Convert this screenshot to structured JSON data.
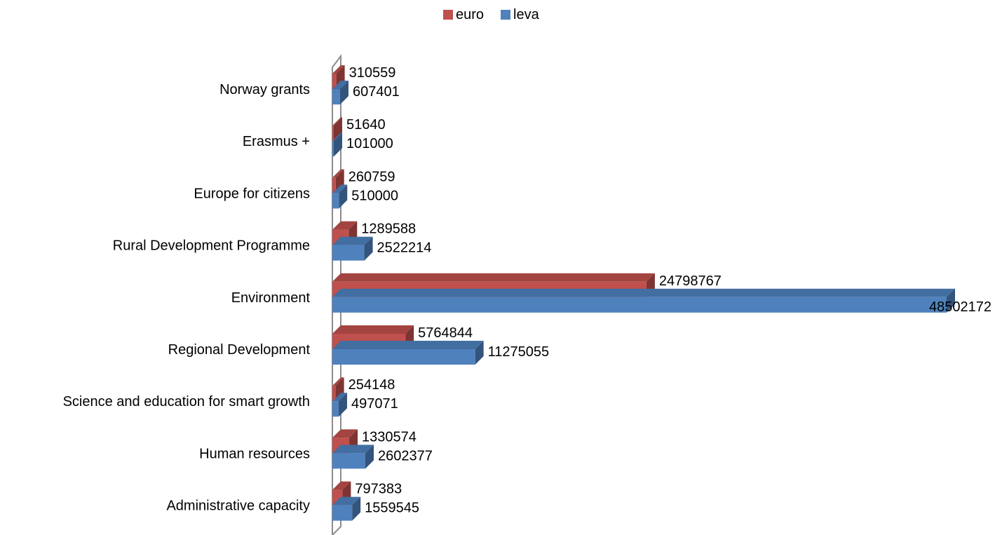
{
  "chart_data": {
    "type": "bar",
    "orientation": "horizontal",
    "style": "3d",
    "title": "",
    "xlabel": "",
    "ylabel": "",
    "grid": false,
    "legend_position": "top",
    "categories": [
      "Norway grants",
      "Erasmus +",
      "Europe for citizens",
      "Rural Development Programme",
      "Environment",
      "Regional Development",
      "Science and education for smart growth",
      "Human resources",
      "Administrative capacity"
    ],
    "series": [
      {
        "name": "euro",
        "color": "#c0504d",
        "values": [
          310559,
          51640,
          260759,
          1289588,
          24798767,
          5764844,
          254148,
          1330574,
          797383
        ]
      },
      {
        "name": "leva",
        "color": "#4f81bd",
        "values": [
          607401,
          101000,
          510000,
          2522214,
          48502172,
          11275055,
          497071,
          2602377,
          1559545
        ]
      }
    ],
    "xlim": [
      0,
      48502172
    ]
  }
}
